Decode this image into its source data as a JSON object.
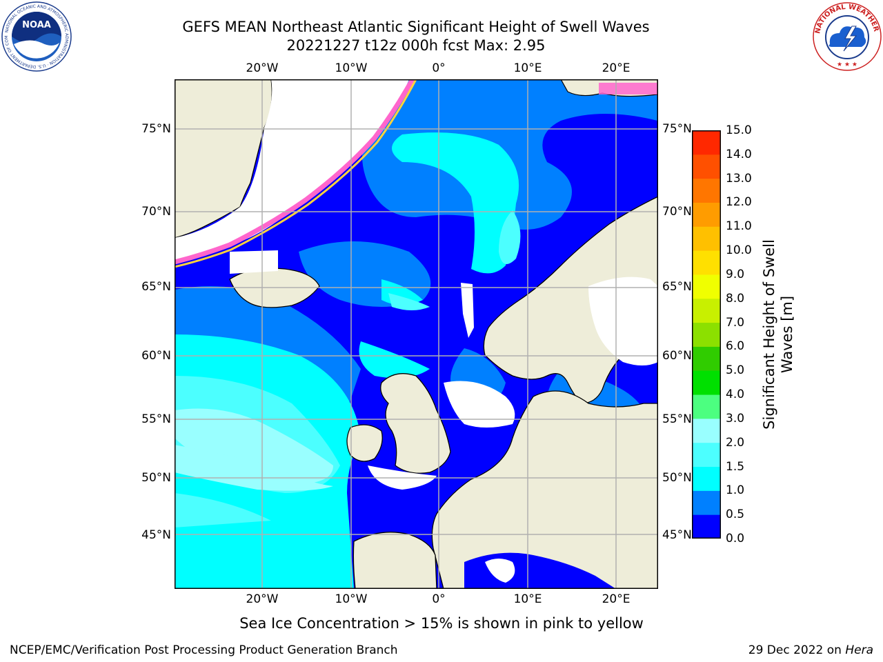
{
  "title": {
    "line1": "GEFS MEAN Northeast Atlantic Significant Height of Swell Waves",
    "line2": "20221227 t12z 000h fcst   Max: 2.95"
  },
  "map": {
    "lon_ticks": [
      "20°W",
      "10°W",
      "0°",
      "10°E",
      "20°E"
    ],
    "lat_ticks": [
      "75°N",
      "70°N",
      "65°N",
      "60°N",
      "55°N",
      "50°N",
      "45°N"
    ],
    "colors": {
      "land": "#eeedd9",
      "no_data": "#ffffff",
      "ice_low": "#ff66cc",
      "ice_high": "#ffd23c"
    }
  },
  "colorbar": {
    "title": "Significant Height of Swell Waves [m]",
    "labels": [
      "15.0",
      "14.0",
      "13.0",
      "12.0",
      "11.0",
      "10.0",
      "9.0",
      "8.0",
      "7.0",
      "6.0",
      "5.0",
      "4.0",
      "3.0",
      "2.0",
      "1.5",
      "1.0",
      "0.5",
      "0.0"
    ],
    "colors": [
      "#0000ff",
      "#0080ff",
      "#00ffff",
      "#4cffff",
      "#99ffff",
      "#4cff80",
      "#00e000",
      "#30cc00",
      "#8ce000",
      "#c8f000",
      "#f0ff00",
      "#ffe000",
      "#ffc000",
      "#ff9c00",
      "#ff7600",
      "#ff5000",
      "#ff2800",
      "#ff0000"
    ]
  },
  "notes": {
    "ice": "Sea Ice Concentration > 15% is shown in pink to yellow",
    "credit_left": "NCEP/EMC/Verification Post Processing Product Generation Branch",
    "credit_right_date": "29 Dec 2022 on ",
    "credit_right_host": "Hera"
  },
  "logos": {
    "noaa_text": "NOAA",
    "noaa_ring": "NATIONAL OCEANIC AND ATMOSPHERIC ADMINISTRATION · U.S. DEPARTMENT OF COMMERCE",
    "nws_ring": "NATIONAL WEATHER SERVICE"
  }
}
